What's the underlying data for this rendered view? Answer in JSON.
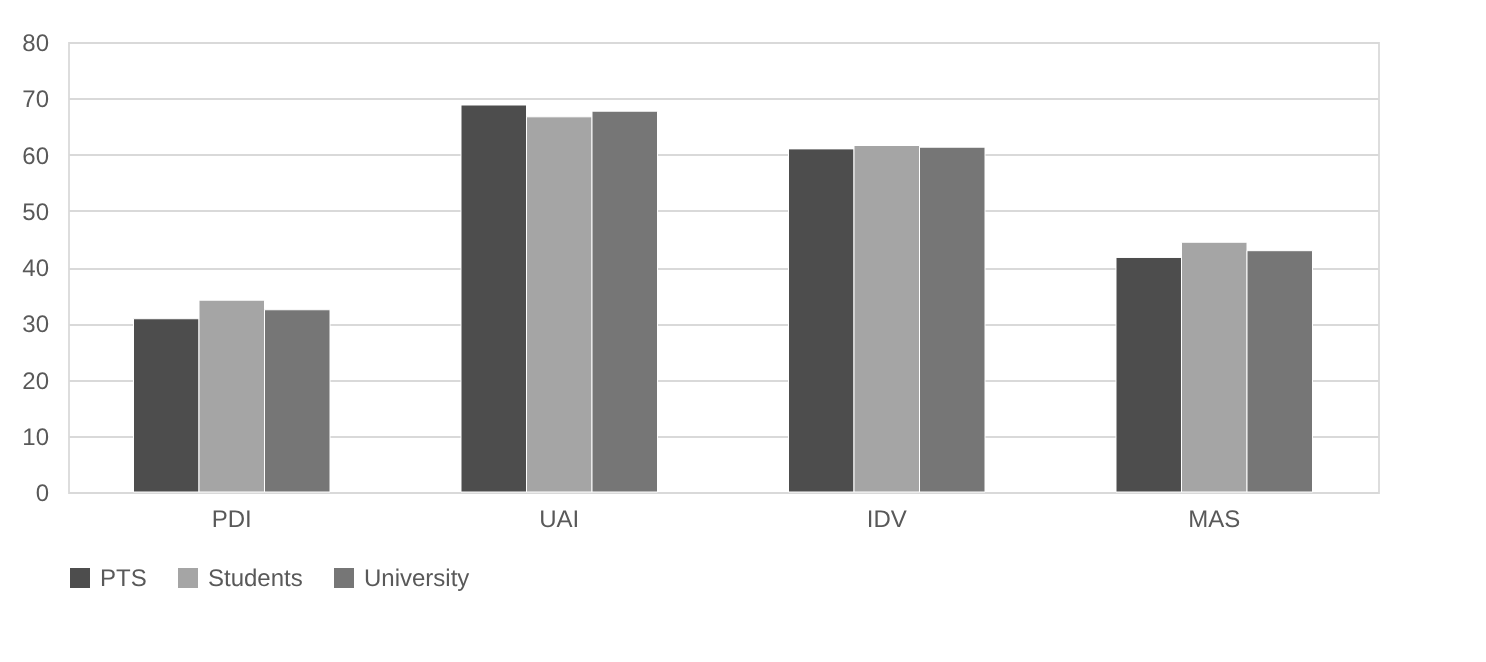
{
  "chart_data": {
    "type": "bar",
    "categories": [
      "PDI",
      "UAI",
      "IDV",
      "MAS"
    ],
    "series": [
      {
        "name": "PTS",
        "color": "#4d4d4d",
        "values": [
          30.8,
          68.8,
          61.0,
          41.7
        ]
      },
      {
        "name": "Students",
        "color": "#a5a5a5",
        "values": [
          34.1,
          66.7,
          61.6,
          44.4
        ]
      },
      {
        "name": "University",
        "color": "#767676",
        "values": [
          32.4,
          67.7,
          61.3,
          42.9
        ]
      }
    ],
    "ylim": [
      0,
      80
    ],
    "yticks": [
      0,
      10,
      20,
      30,
      40,
      50,
      60,
      70,
      80
    ],
    "grid": "y",
    "legend": "bottom"
  }
}
